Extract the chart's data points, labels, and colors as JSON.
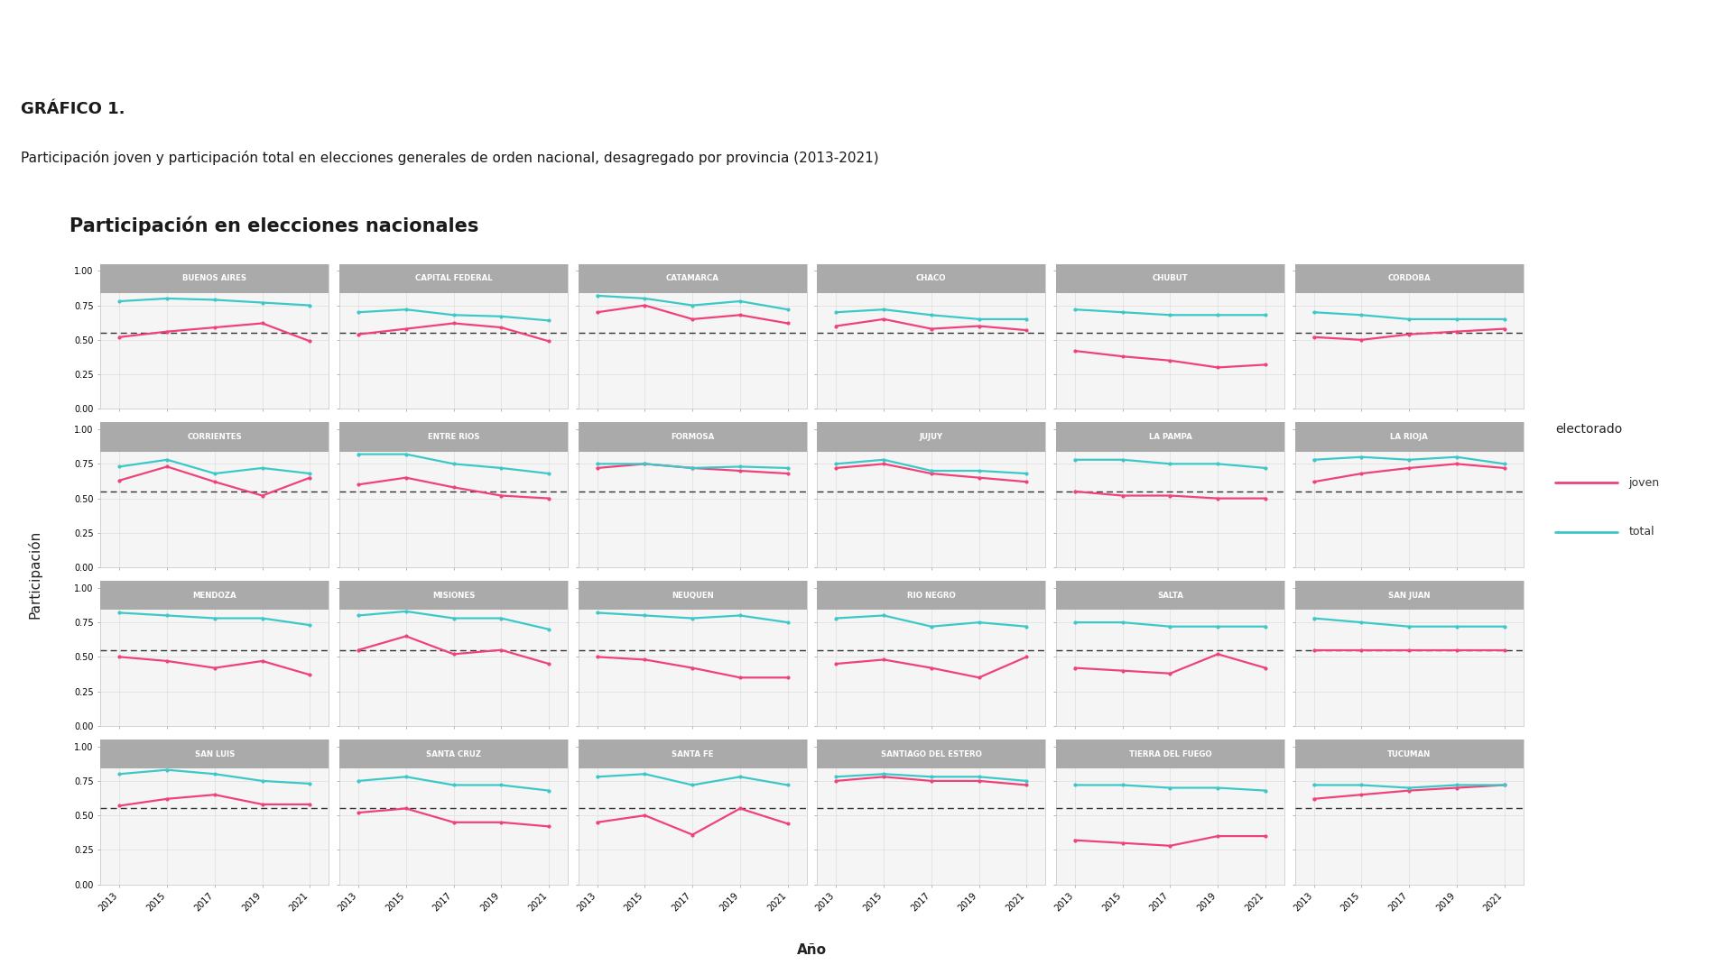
{
  "title_header": "GRÁFICO 1.",
  "subtitle_header": "Participación joven y participación total en elecciones generales de orden nacional, desagregado por provincia (2013-2021)",
  "plot_title": "Participación en elecciones nacionales",
  "ylabel": "Participación",
  "xlabel": "Año",
  "legend_title": "electorado",
  "legend_labels": [
    "joven",
    "total"
  ],
  "years": [
    2013,
    2015,
    2017,
    2019,
    2021
  ],
  "color_joven": "#F0427A",
  "color_total": "#3CC8C8",
  "dashed_line_y": 0.55,
  "provinces": [
    "BUENOS AIRES",
    "CAPITAL FEDERAL",
    "CATAMARCA",
    "CHACO",
    "CHUBUT",
    "CORDOBA",
    "CORRIENTES",
    "ENTRE RIOS",
    "FORMOSA",
    "JUJUY",
    "LA PAMPA",
    "LA RIOJA",
    "MENDOZA",
    "MISIONES",
    "NEUQUEN",
    "RIO NEGRO",
    "SALTA",
    "SAN JUAN",
    "SAN LUIS",
    "SANTA CRUZ",
    "SANTA FE",
    "SANTIAGO DEL ESTERO",
    "TIERRA DEL FUEGO",
    "TUCUMAN"
  ],
  "data_joven": {
    "BUENOS AIRES": [
      0.52,
      0.56,
      0.59,
      0.62,
      0.49
    ],
    "CAPITAL FEDERAL": [
      0.54,
      0.58,
      0.62,
      0.59,
      0.49
    ],
    "CATAMARCA": [
      0.7,
      0.75,
      0.65,
      0.68,
      0.62
    ],
    "CHACO": [
      0.6,
      0.65,
      0.58,
      0.6,
      0.57
    ],
    "CHUBUT": [
      0.42,
      0.38,
      0.35,
      0.3,
      0.32
    ],
    "CORDOBA": [
      0.52,
      0.5,
      0.54,
      0.56,
      0.58
    ],
    "CORRIENTES": [
      0.63,
      0.73,
      0.62,
      0.52,
      0.65
    ],
    "ENTRE RIOS": [
      0.6,
      0.65,
      0.58,
      0.52,
      0.5
    ],
    "FORMOSA": [
      0.72,
      0.75,
      0.72,
      0.7,
      0.68
    ],
    "JUJUY": [
      0.72,
      0.75,
      0.68,
      0.65,
      0.62
    ],
    "LA PAMPA": [
      0.55,
      0.52,
      0.52,
      0.5,
      0.5
    ],
    "LA RIOJA": [
      0.62,
      0.68,
      0.72,
      0.75,
      0.72
    ],
    "MENDOZA": [
      0.5,
      0.47,
      0.42,
      0.47,
      0.37
    ],
    "MISIONES": [
      0.55,
      0.65,
      0.52,
      0.55,
      0.45
    ],
    "NEUQUEN": [
      0.5,
      0.48,
      0.42,
      0.35,
      0.35
    ],
    "RIO NEGRO": [
      0.45,
      0.48,
      0.42,
      0.35,
      0.5
    ],
    "SALTA": [
      0.42,
      0.4,
      0.38,
      0.52,
      0.42
    ],
    "SAN JUAN": [
      0.55,
      0.55,
      0.55,
      0.55,
      0.55
    ],
    "SAN LUIS": [
      0.57,
      0.62,
      0.65,
      0.58,
      0.58
    ],
    "SANTA CRUZ": [
      0.52,
      0.55,
      0.45,
      0.45,
      0.42
    ],
    "SANTA FE": [
      0.45,
      0.5,
      0.36,
      0.55,
      0.44
    ],
    "SANTIAGO DEL ESTERO": [
      0.75,
      0.78,
      0.75,
      0.75,
      0.72
    ],
    "TIERRA DEL FUEGO": [
      0.32,
      0.3,
      0.28,
      0.35,
      0.35
    ],
    "TUCUMAN": [
      0.62,
      0.65,
      0.68,
      0.7,
      0.72
    ]
  },
  "data_total": {
    "BUENOS AIRES": [
      0.78,
      0.8,
      0.79,
      0.77,
      0.75
    ],
    "CAPITAL FEDERAL": [
      0.7,
      0.72,
      0.68,
      0.67,
      0.64
    ],
    "CATAMARCA": [
      0.82,
      0.8,
      0.75,
      0.78,
      0.72
    ],
    "CHACO": [
      0.7,
      0.72,
      0.68,
      0.65,
      0.65
    ],
    "CHUBUT": [
      0.72,
      0.7,
      0.68,
      0.68,
      0.68
    ],
    "CORDOBA": [
      0.7,
      0.68,
      0.65,
      0.65,
      0.65
    ],
    "CORRIENTES": [
      0.73,
      0.78,
      0.68,
      0.72,
      0.68
    ],
    "ENTRE RIOS": [
      0.82,
      0.82,
      0.75,
      0.72,
      0.68
    ],
    "FORMOSA": [
      0.75,
      0.75,
      0.72,
      0.73,
      0.72
    ],
    "JUJUY": [
      0.75,
      0.78,
      0.7,
      0.7,
      0.68
    ],
    "LA PAMPA": [
      0.78,
      0.78,
      0.75,
      0.75,
      0.72
    ],
    "LA RIOJA": [
      0.78,
      0.8,
      0.78,
      0.8,
      0.75
    ],
    "MENDOZA": [
      0.82,
      0.8,
      0.78,
      0.78,
      0.73
    ],
    "MISIONES": [
      0.8,
      0.83,
      0.78,
      0.78,
      0.7
    ],
    "NEUQUEN": [
      0.82,
      0.8,
      0.78,
      0.8,
      0.75
    ],
    "RIO NEGRO": [
      0.78,
      0.8,
      0.72,
      0.75,
      0.72
    ],
    "SALTA": [
      0.75,
      0.75,
      0.72,
      0.72,
      0.72
    ],
    "SAN JUAN": [
      0.78,
      0.75,
      0.72,
      0.72,
      0.72
    ],
    "SAN LUIS": [
      0.8,
      0.83,
      0.8,
      0.75,
      0.73
    ],
    "SANTA CRUZ": [
      0.75,
      0.78,
      0.72,
      0.72,
      0.68
    ],
    "SANTA FE": [
      0.78,
      0.8,
      0.72,
      0.78,
      0.72
    ],
    "SANTIAGO DEL ESTERO": [
      0.78,
      0.8,
      0.78,
      0.78,
      0.75
    ],
    "TIERRA DEL FUEGO": [
      0.72,
      0.72,
      0.7,
      0.7,
      0.68
    ],
    "TUCUMAN": [
      0.72,
      0.72,
      0.7,
      0.72,
      0.72
    ]
  },
  "bg_color": "#FFFFFF",
  "panel_bg": "#F5F5F5",
  "strip_bg": "#AAAAAA",
  "strip_text_color": "#FFFFFF",
  "grid_color": "#DDDDDD",
  "header_bg": "#C8E0EE",
  "dashed_color": "#333333"
}
